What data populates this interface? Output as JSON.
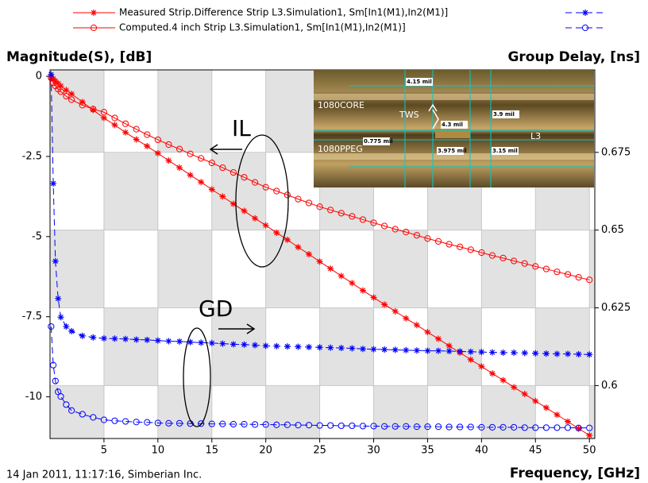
{
  "chart_data": {
    "type": "line",
    "y_label": "Magnitude(S), [dB]",
    "y2_label": "Group Delay, [ns]",
    "x_label": "Frequency, [GHz]",
    "footer": "14 Jan 2011, 11:17:16, Simberian Inc.",
    "annotations": [
      "IL",
      "GD"
    ],
    "inset_labels": [
      "1080CORE",
      "TWS",
      "1080PPEG",
      "L3",
      "4.15 mil",
      "4.3 mil",
      "3.9 mil",
      "0.775 mil",
      "3.975 mil",
      "3.15 mil"
    ],
    "xlim": [
      0,
      50.5
    ],
    "xticks": [
      5,
      10,
      15,
      20,
      25,
      30,
      35,
      40,
      45,
      50
    ],
    "ylim": [
      -11.3,
      0.2
    ],
    "yticks": [
      0,
      -2.5,
      -5,
      -7.5,
      -10
    ],
    "y2lim": [
      0.583,
      0.7015
    ],
    "y2ticks": [
      0.675,
      0.65,
      0.625,
      0.6
    ],
    "x": [
      0.1,
      0.3,
      0.5,
      0.75,
      1,
      1.5,
      2,
      3,
      4,
      5,
      6,
      7,
      8,
      9,
      10,
      11,
      12,
      13,
      14,
      15,
      16,
      17,
      18,
      19,
      20,
      21,
      22,
      23,
      24,
      25,
      26,
      27,
      28,
      29,
      30,
      31,
      32,
      33,
      34,
      35,
      36,
      37,
      38,
      39,
      40,
      41,
      42,
      43,
      44,
      45,
      46,
      47,
      48,
      49,
      50
    ],
    "series": [
      {
        "name": "Measured Strip.Difference Strip L3.Simulation1, Sm[In1(M1),In2(M1)]",
        "color": "#ff0000",
        "marker": "star",
        "dashed": false,
        "values": [
          -0.02,
          -0.08,
          -0.15,
          -0.22,
          -0.3,
          -0.43,
          -0.55,
          -0.8,
          -1.05,
          -1.3,
          -1.52,
          -1.75,
          -1.97,
          -2.18,
          -2.4,
          -2.63,
          -2.85,
          -3.08,
          -3.3,
          -3.53,
          -3.75,
          -3.98,
          -4.2,
          -4.43,
          -4.65,
          -4.88,
          -5.1,
          -5.33,
          -5.55,
          -5.78,
          -6.0,
          -6.23,
          -6.45,
          -6.68,
          -6.9,
          -7.12,
          -7.33,
          -7.55,
          -7.76,
          -7.98,
          -8.19,
          -8.41,
          -8.62,
          -8.84,
          -9.05,
          -9.27,
          -9.48,
          -9.7,
          -9.91,
          -10.13,
          -10.34,
          -10.56,
          -10.77,
          -10.99,
          -11.2
        ]
      },
      {
        "name": "Computed.4 inch Strip L3.Simulation1, Sm[In1(M1),In2(M1)]",
        "color": "#ff0000",
        "marker": "circle",
        "dashed": false,
        "values": [
          -0.05,
          -0.2,
          -0.3,
          -0.4,
          -0.48,
          -0.62,
          -0.73,
          -0.9,
          -1.02,
          -1.12,
          -1.3,
          -1.48,
          -1.65,
          -1.82,
          -1.98,
          -2.13,
          -2.27,
          -2.42,
          -2.56,
          -2.7,
          -2.85,
          -3.0,
          -3.15,
          -3.31,
          -3.46,
          -3.58,
          -3.7,
          -3.83,
          -3.95,
          -4.07,
          -4.17,
          -4.27,
          -4.37,
          -4.47,
          -4.57,
          -4.67,
          -4.77,
          -4.86,
          -4.96,
          -5.06,
          -5.15,
          -5.24,
          -5.32,
          -5.41,
          -5.5,
          -5.59,
          -5.67,
          -5.76,
          -5.84,
          -5.93,
          -6.01,
          -6.1,
          -6.18,
          -6.27,
          -6.35
        ]
      },
      {
        "color": "#0000ff",
        "marker": "star",
        "dashed": true,
        "axis": "y2",
        "values": [
          0.7,
          0.665,
          0.64,
          0.628,
          0.622,
          0.619,
          0.6175,
          0.616,
          0.6155,
          0.6152,
          0.6151,
          0.615,
          0.6148,
          0.6147,
          0.6145,
          0.6143,
          0.6142,
          0.614,
          0.6138,
          0.6137,
          0.6135,
          0.6133,
          0.6132,
          0.613,
          0.6128,
          0.6127,
          0.6126,
          0.6125,
          0.6124,
          0.6123,
          0.6122,
          0.6121,
          0.612,
          0.6118,
          0.6117,
          0.6116,
          0.6115,
          0.6114,
          0.6113,
          0.6112,
          0.6112,
          0.6111,
          0.611,
          0.6109,
          0.6108,
          0.6107,
          0.6106,
          0.6106,
          0.6105,
          0.6104,
          0.6103,
          0.6102,
          0.6102,
          0.6101,
          0.61
        ]
      },
      {
        "color": "#0000ff",
        "marker": "circle",
        "dashed": true,
        "axis": "y2",
        "values": [
          0.619,
          0.6066,
          0.6015,
          0.598,
          0.5965,
          0.5939,
          0.592,
          0.5908,
          0.5898,
          0.589,
          0.5887,
          0.5885,
          0.5883,
          0.5882,
          0.588,
          0.5879,
          0.5879,
          0.5878,
          0.5878,
          0.5877,
          0.5877,
          0.5876,
          0.5876,
          0.5875,
          0.5875,
          0.5874,
          0.5874,
          0.5873,
          0.5873,
          0.5872,
          0.5872,
          0.5871,
          0.5871,
          0.587,
          0.587,
          0.5869,
          0.5869,
          0.5869,
          0.5868,
          0.5868,
          0.5868,
          0.5867,
          0.5867,
          0.5867,
          0.5866,
          0.5866,
          0.5866,
          0.5866,
          0.5865,
          0.5865,
          0.5865,
          0.5865,
          0.5865,
          0.5864,
          0.5864
        ]
      }
    ]
  }
}
